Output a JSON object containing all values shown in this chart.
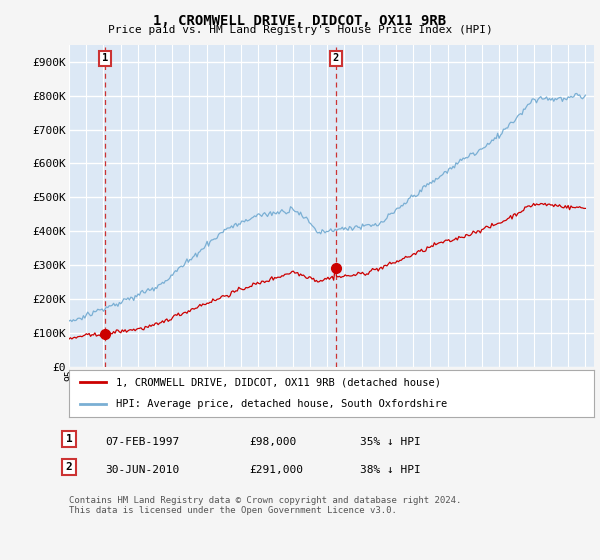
{
  "title": "1, CROMWELL DRIVE, DIDCOT, OX11 9RB",
  "subtitle": "Price paid vs. HM Land Registry's House Price Index (HPI)",
  "background_color": "#dce8f5",
  "plot_background": "#dce8f5",
  "ylabel": "",
  "ylim": [
    0,
    950000
  ],
  "yticks": [
    0,
    100000,
    200000,
    300000,
    400000,
    500000,
    600000,
    700000,
    800000,
    900000
  ],
  "ytick_labels": [
    "£0",
    "£100K",
    "£200K",
    "£300K",
    "£400K",
    "£500K",
    "£600K",
    "£700K",
    "£800K",
    "£900K"
  ],
  "xlim_start": 1995.0,
  "xlim_end": 2025.5,
  "sale1_x": 1997.1,
  "sale1_y": 98000,
  "sale2_x": 2010.5,
  "sale2_y": 291000,
  "legend_line1": "1, CROMWELL DRIVE, DIDCOT, OX11 9RB (detached house)",
  "legend_line2": "HPI: Average price, detached house, South Oxfordshire",
  "table_row1": [
    "1",
    "07-FEB-1997",
    "£98,000",
    "35% ↓ HPI"
  ],
  "table_row2": [
    "2",
    "30-JUN-2010",
    "£291,000",
    "38% ↓ HPI"
  ],
  "footnote": "Contains HM Land Registry data © Crown copyright and database right 2024.\nThis data is licensed under the Open Government Licence v3.0.",
  "line_color_red": "#cc0000",
  "line_color_blue": "#7aafd4",
  "grid_color": "#ffffff",
  "box_color": "#cc3333",
  "fig_bg": "#f5f5f5"
}
